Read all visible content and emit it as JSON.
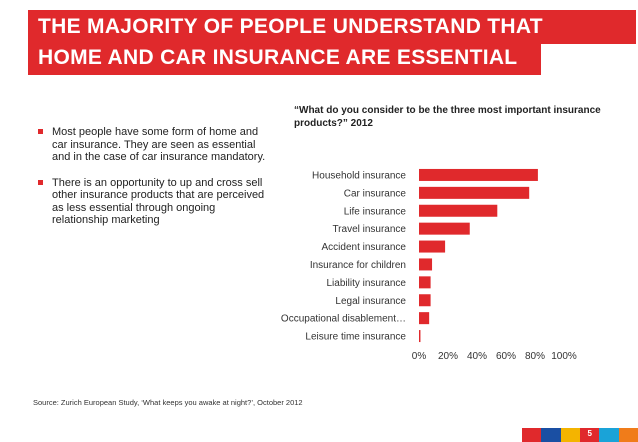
{
  "title": {
    "line1": "THE MAJORITY OF PEOPLE UNDERSTAND THAT",
    "line2": "HOME AND CAR INSURANCE ARE ESSENTIAL"
  },
  "bullets": [
    "Most people have some form of home and car insurance. They are seen as essential and in the case of car insurance mandatory.",
    "There is an opportunity to up and cross sell other insurance products that are perceived as less essential through ongoing relationship marketing"
  ],
  "chart_question": "“What do you consider to be the three most important insurance products?” 2012",
  "source": "Source: Zurich European Study, ‘What keeps you awake at night?’, October  2012",
  "page_number": "5",
  "colors": {
    "accent": "#e0292c",
    "footer": [
      "#e0292c",
      "#1a4fa3",
      "#f4b400",
      "#e0292c",
      "#1aa3d8",
      "#f07c1a"
    ]
  },
  "chart_data": {
    "type": "bar",
    "orientation": "horizontal",
    "categories": [
      "Household insurance",
      "Car insurance",
      "Life insurance",
      "Travel insurance",
      "Accident insurance",
      "Insurance for children",
      "Liability insurance",
      "Legal insurance",
      "Occupational disablement…",
      "Leisure time insurance"
    ],
    "values": [
      82,
      76,
      54,
      35,
      18,
      9,
      8,
      8,
      7,
      1
    ],
    "xlim": [
      0,
      100
    ],
    "xticks": [
      "0%",
      "20%",
      "40%",
      "60%",
      "80%",
      "100%"
    ],
    "bar_color": "#e0292c",
    "grid": false
  }
}
